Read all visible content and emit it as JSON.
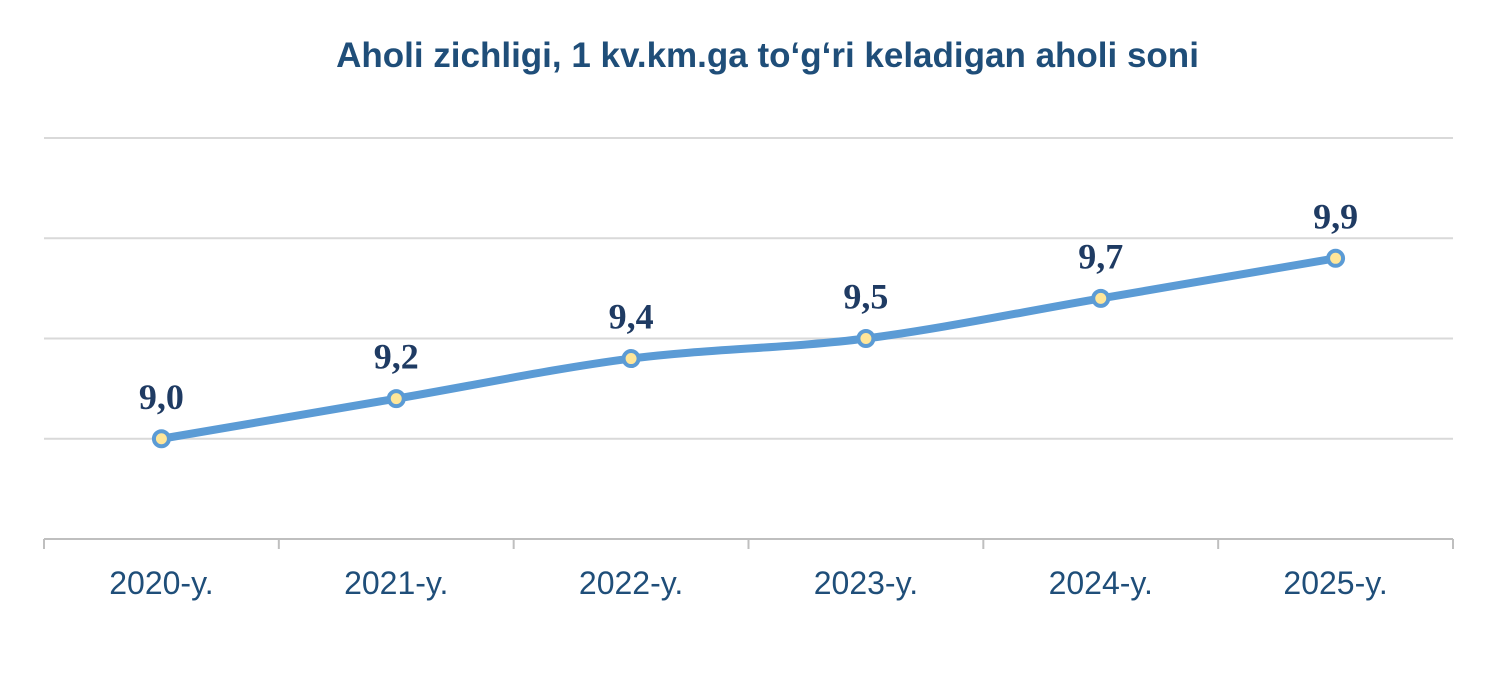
{
  "chart_data": {
    "type": "line",
    "title": "Aholi zichligi, 1 kv.km.ga to‘g‘ri keladigan aholi soni",
    "categories": [
      "2020-y.",
      "2021-y.",
      "2022-y.",
      "2023-y.",
      "2024-y.",
      "2025-y."
    ],
    "values": [
      9.0,
      9.2,
      9.4,
      9.5,
      9.7,
      9.9
    ],
    "data_labels": [
      "9,0",
      "9,2",
      "9,4",
      "9,5",
      "9,7",
      "9,9"
    ],
    "ylim": [
      8.5,
      10.5
    ],
    "grid": true,
    "legend": "none",
    "colors": {
      "line": "#5b9bd5",
      "marker_fill": "#ffe699",
      "grid": "#d9d9d9",
      "text": "#1f4e79"
    }
  }
}
